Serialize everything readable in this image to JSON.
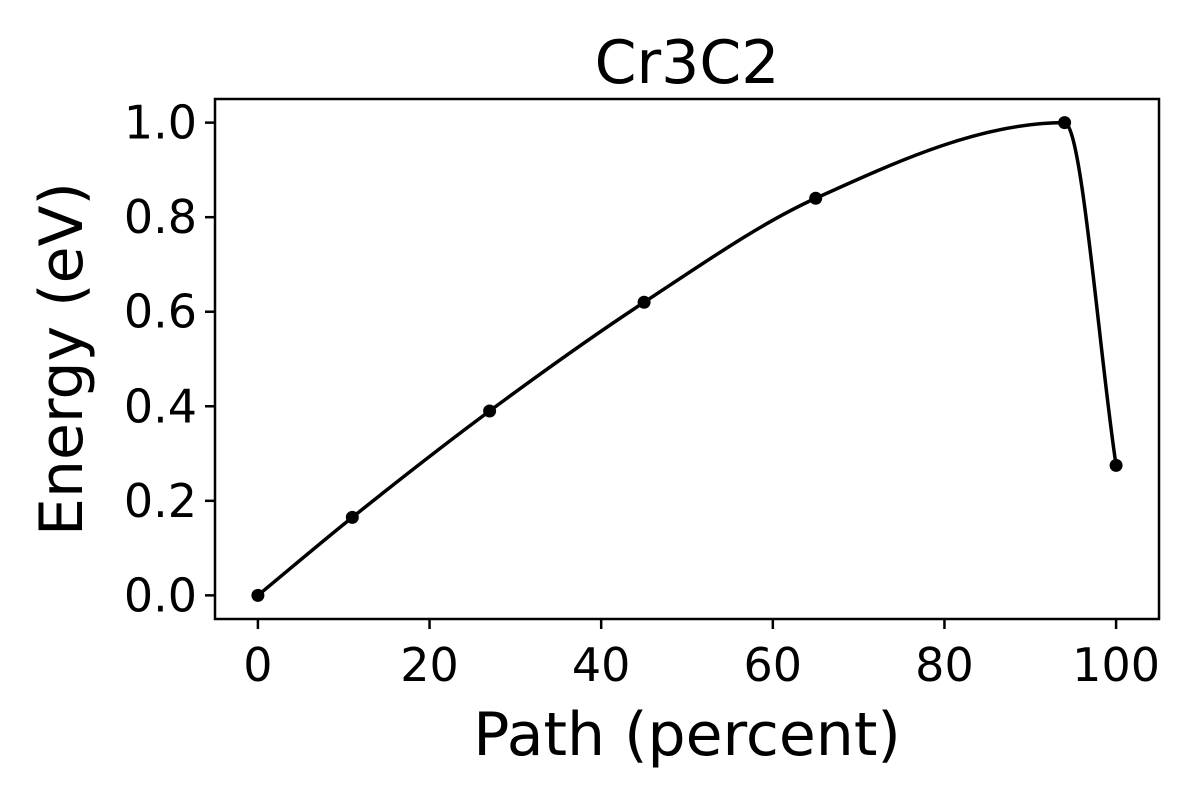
{
  "chart_data": {
    "type": "line",
    "title": "Cr3C2",
    "xlabel": "Path (percent)",
    "ylabel": "Energy (eV)",
    "xlim": [
      -5,
      105
    ],
    "ylim": [
      -0.05,
      1.05
    ],
    "xticks": [
      0,
      20,
      40,
      60,
      80,
      100
    ],
    "xtick_labels": [
      "0",
      "20",
      "40",
      "60",
      "80",
      "100"
    ],
    "yticks": [
      0.0,
      0.2,
      0.4,
      0.6,
      0.8,
      1.0
    ],
    "ytick_labels": [
      "0.0",
      "0.2",
      "0.4",
      "0.6",
      "0.8",
      "1.0"
    ],
    "grid": false,
    "series": [
      {
        "color": "#000000",
        "points": [
          {
            "x": 0,
            "y": 0.0
          },
          {
            "x": 11,
            "y": 0.165
          },
          {
            "x": 27,
            "y": 0.39
          },
          {
            "x": 45,
            "y": 0.62
          },
          {
            "x": 65,
            "y": 0.84
          },
          {
            "x": 94,
            "y": 1.0
          },
          {
            "x": 100,
            "y": 0.275
          }
        ]
      }
    ]
  }
}
